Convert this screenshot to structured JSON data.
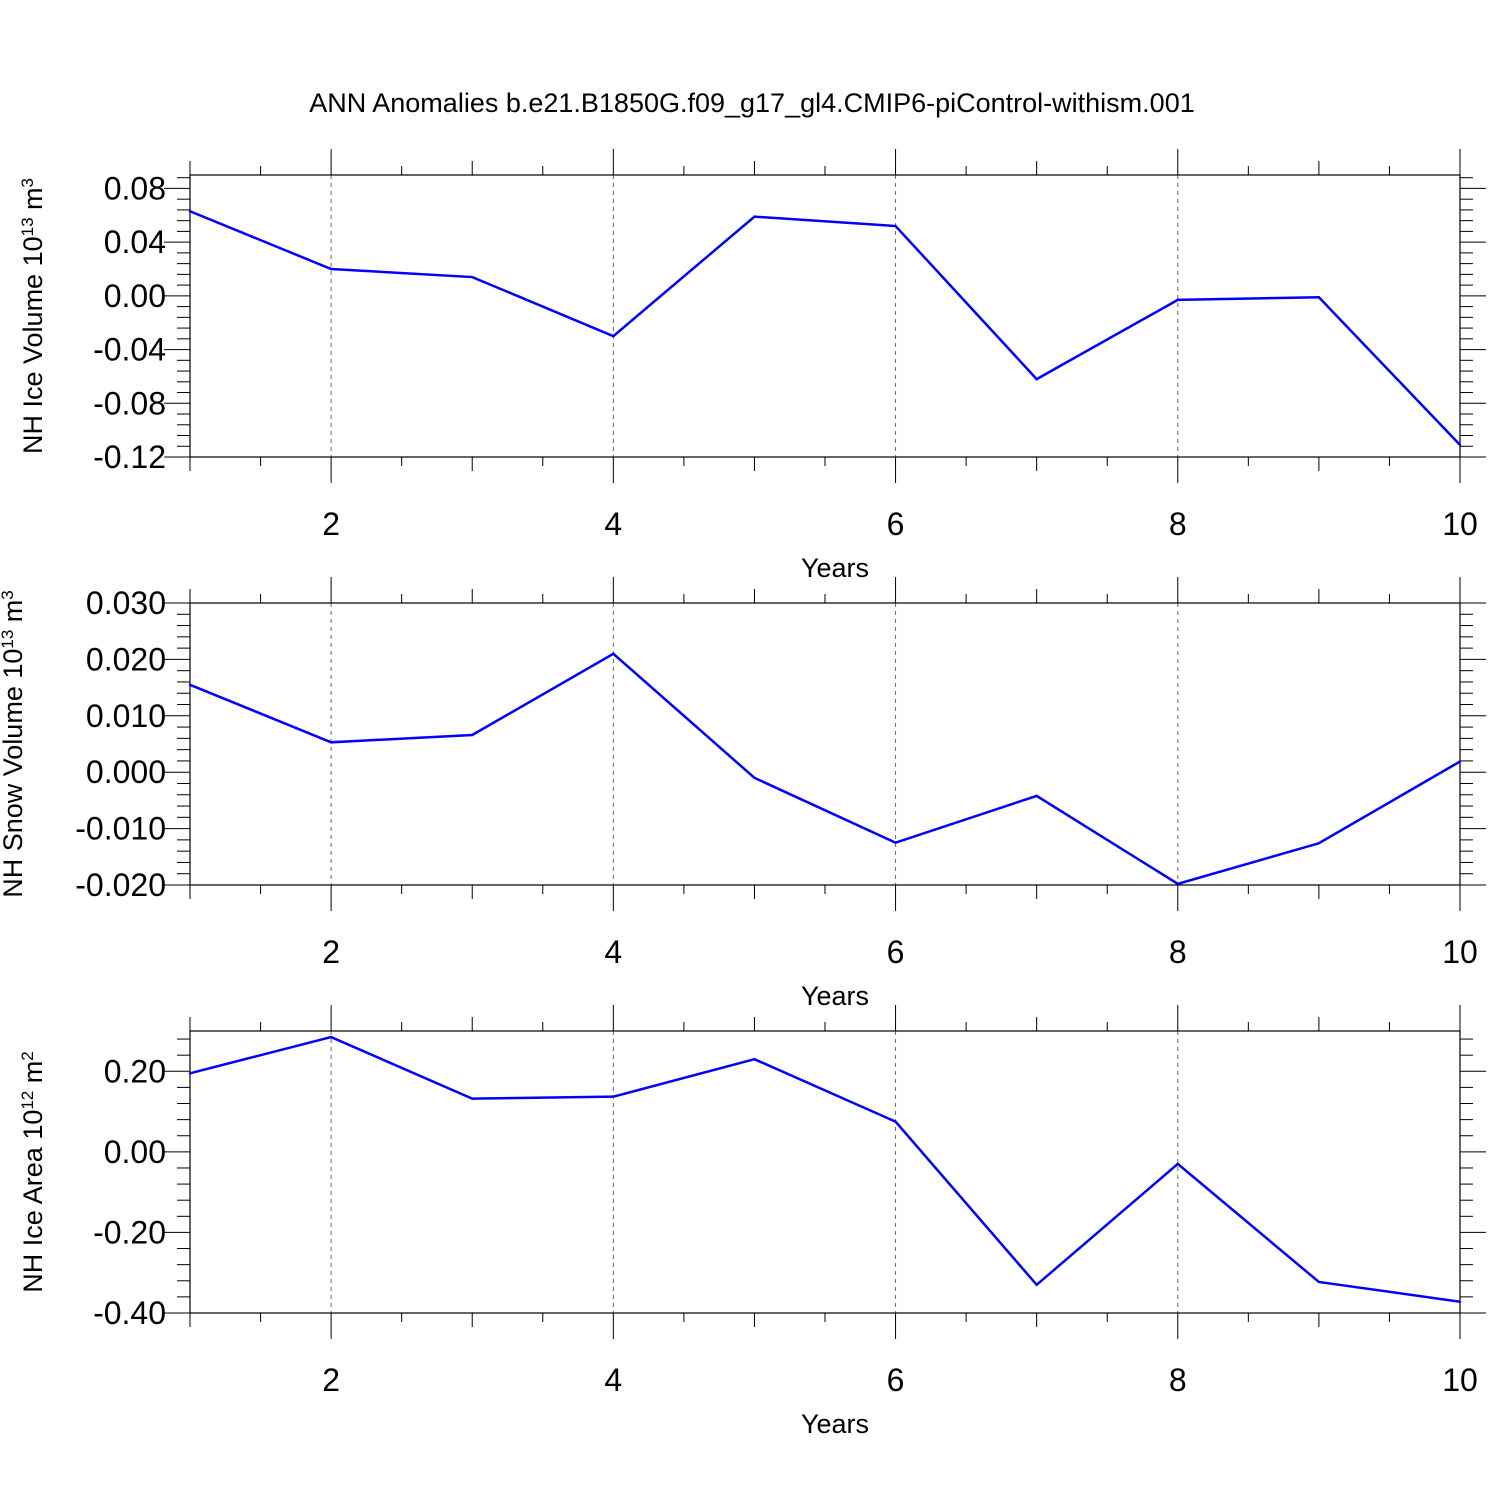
{
  "title": "ANN Anomalies b.e21.B1850G.f09_g17_gl4.CMIP6-piControl-withism.001",
  "chart_data": [
    {
      "type": "line",
      "ylabel": {
        "base": "NH Ice Volume 10",
        "exp": "13",
        "mid": " m",
        "unit_exp": "3"
      },
      "xlabel": "Years",
      "xlim": [
        1,
        10
      ],
      "ylim": [
        -0.12,
        0.09
      ],
      "x_ticks": [
        2,
        4,
        6,
        8,
        10
      ],
      "x_tick_labels": [
        "2",
        "4",
        "6",
        "8",
        "10"
      ],
      "y_ticks": [
        -0.12,
        -0.08,
        -0.04,
        0.0,
        0.04,
        0.08
      ],
      "y_tick_labels": [
        "-0.12",
        "-0.08",
        "-0.04",
        "0.00",
        "0.04",
        "0.08"
      ],
      "grid": "vertical dashed at major x ticks",
      "x": [
        1,
        2,
        3,
        4,
        5,
        6,
        7,
        8,
        9,
        10
      ],
      "series": [
        {
          "values": [
            0.063,
            0.02,
            0.014,
            -0.03,
            0.059,
            0.052,
            -0.062,
            -0.003,
            -0.001,
            -0.111
          ],
          "color": "#0000ff"
        }
      ]
    },
    {
      "type": "line",
      "ylabel": {
        "base": "NH Snow Volume 10",
        "exp": "13",
        "mid": " m",
        "unit_exp": "3"
      },
      "xlabel": "Years",
      "xlim": [
        1,
        10
      ],
      "ylim": [
        -0.02,
        0.03
      ],
      "x_ticks": [
        2,
        4,
        6,
        8,
        10
      ],
      "x_tick_labels": [
        "2",
        "4",
        "6",
        "8",
        "10"
      ],
      "y_ticks": [
        -0.02,
        -0.01,
        0.0,
        0.01,
        0.02,
        0.03
      ],
      "y_tick_labels": [
        "-0.020",
        "-0.010",
        "0.000",
        "0.010",
        "0.020",
        "0.030"
      ],
      "grid": "vertical dashed at major x ticks",
      "x": [
        1,
        2,
        3,
        4,
        5,
        6,
        7,
        8,
        9,
        10
      ],
      "series": [
        {
          "values": [
            0.0155,
            0.0053,
            0.0066,
            0.021,
            -0.001,
            -0.0125,
            -0.0042,
            -0.0198,
            -0.0126,
            0.0019
          ],
          "color": "#0000ff"
        }
      ]
    },
    {
      "type": "line",
      "ylabel": {
        "base": "NH Ice Area 10",
        "exp": "12",
        "mid": " m",
        "unit_exp": "2"
      },
      "xlabel": "Years",
      "xlim": [
        1,
        10
      ],
      "ylim": [
        -0.4,
        0.3
      ],
      "x_ticks": [
        2,
        4,
        6,
        8,
        10
      ],
      "x_tick_labels": [
        "2",
        "4",
        "6",
        "8",
        "10"
      ],
      "y_ticks": [
        -0.4,
        -0.2,
        0.0,
        0.2
      ],
      "y_tick_labels": [
        "-0.40",
        "-0.20",
        "0.00",
        "0.20"
      ],
      "grid": "vertical dashed at major x ticks",
      "x": [
        1,
        2,
        3,
        4,
        5,
        6,
        7,
        8,
        9,
        10
      ],
      "series": [
        {
          "values": [
            0.195,
            0.285,
            0.132,
            0.137,
            0.23,
            0.075,
            -0.33,
            -0.03,
            -0.323,
            -0.372
          ],
          "color": "#0000ff"
        }
      ]
    }
  ]
}
